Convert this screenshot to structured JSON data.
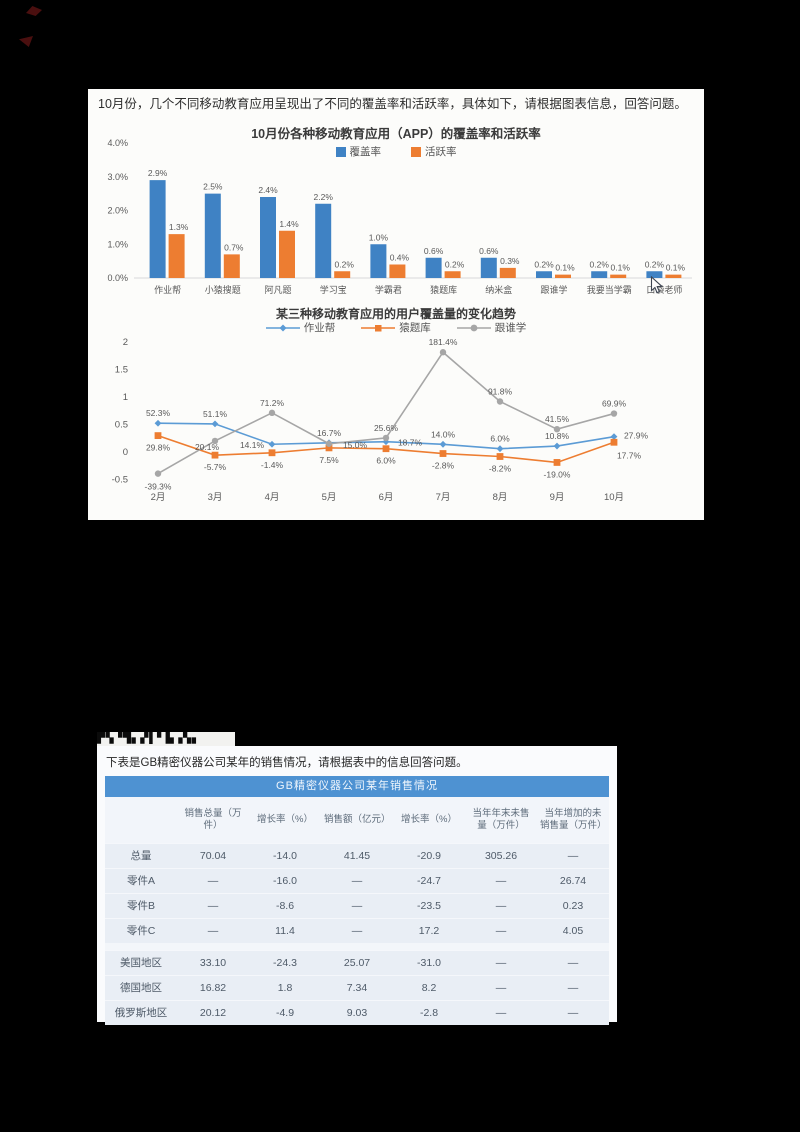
{
  "question": "10月份，几个不同移动教育应用呈现出了不同的覆盖率和活跃率，具体如下，请根据图表信息，回答问题。",
  "glitch_text": "▛▚▝▜▖▞▌▘▙▗▚▖",
  "colors": {
    "coverage_blue": "#3f82c4",
    "activity_orange": "#ed7d31",
    "line_blue": "#5b9bd5",
    "line_orange": "#ed7d31",
    "line_gray": "#a6a6a6",
    "table_header_blue": "#4e92d2",
    "chart_text_gray": "#595959"
  },
  "chart_data": [
    {
      "type": "bar",
      "title": "10月份各种移动教育应用（APP）的覆盖率和活跃率",
      "categories": [
        "作业帮",
        "小猿搜题",
        "阿凡题",
        "学习宝",
        "学霸君",
        "猿题库",
        "纳米盒",
        "跟谁学",
        "我要当学霸",
        "口袋老师"
      ],
      "series": [
        {
          "name": "覆盖率",
          "color": "#3f82c4",
          "values": [
            2.9,
            2.5,
            2.4,
            2.2,
            1.0,
            0.6,
            0.6,
            0.2,
            0.2,
            0.2
          ]
        },
        {
          "name": "活跃率",
          "color": "#ed7d31",
          "values": [
            1.3,
            0.7,
            1.4,
            0.2,
            0.4,
            0.2,
            0.3,
            0.1,
            0.1,
            0.1
          ]
        }
      ],
      "unit": "%",
      "ylim": [
        0,
        4
      ],
      "yticks": [
        "4.0%",
        "3.0%",
        "2.0%",
        "1.0%",
        "0.0%"
      ],
      "grid": false,
      "legend_position": "top"
    },
    {
      "type": "line",
      "title": "某三种移动教育应用的用户覆盖量的变化趋势",
      "x": [
        "2月",
        "3月",
        "4月",
        "5月",
        "6月",
        "7月",
        "8月",
        "9月",
        "10月"
      ],
      "series": [
        {
          "name": "作业帮",
          "color": "#5b9bd5",
          "marker": "diamond",
          "values": [
            52.3,
            51.1,
            14.1,
            16.7,
            18.7,
            14.0,
            6.0,
            10.8,
            27.9
          ]
        },
        {
          "name": "猿题库",
          "color": "#ed7d31",
          "marker": "square",
          "values": [
            29.8,
            -5.7,
            -1.4,
            7.5,
            6.0,
            -2.8,
            -8.2,
            -19.0,
            17.7
          ]
        },
        {
          "name": "跟谁学",
          "color": "#a6a6a6",
          "marker": "circle",
          "values": [
            -39.3,
            20.1,
            71.2,
            15.0,
            25.6,
            181.4,
            91.8,
            41.5,
            69.9
          ]
        }
      ],
      "unit": "%",
      "ylim": [
        -0.5,
        2
      ],
      "yticks": [
        "2",
        "1.5",
        "1",
        "0.5",
        "0",
        "-0.5"
      ],
      "grid": false,
      "legend_position": "top"
    },
    {
      "type": "table",
      "title": "GB精密仪器公司某年销售情况",
      "columns": [
        "",
        "销售总量（万件）",
        "增长率（%）",
        "销售额（亿元）",
        "增长率（%）",
        "当年年末未售量（万件）",
        "当年增加的未销售量（万件）"
      ],
      "rows": [
        [
          "总量",
          "70.04",
          "-14.0",
          "41.45",
          "-20.9",
          "305.26",
          "—"
        ],
        [
          "零件A",
          "—",
          "-16.0",
          "—",
          "-24.7",
          "—",
          "26.74"
        ],
        [
          "零件B",
          "—",
          "-8.6",
          "—",
          "-23.5",
          "—",
          "0.23"
        ],
        [
          "零件C",
          "—",
          "11.4",
          "—",
          "17.2",
          "—",
          "4.05"
        ],
        [
          "美国地区",
          "33.10",
          "-24.3",
          "25.07",
          "-31.0",
          "—",
          "—"
        ],
        [
          "德国地区",
          "16.82",
          "1.8",
          "7.34",
          "8.2",
          "—",
          "—"
        ],
        [
          "俄罗斯地区",
          "20.12",
          "-4.9",
          "9.03",
          "-2.8",
          "—",
          "—"
        ]
      ]
    }
  ],
  "table_section": {
    "intro": "下表是GB精密仪器公司某年的销售情况，请根据表中的信息回答问题。"
  }
}
